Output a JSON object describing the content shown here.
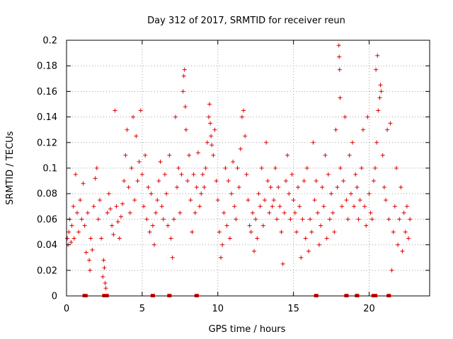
{
  "chart_data": {
    "type": "scatter",
    "title": "Day 312 of 2017, SRMTID for receiver reun",
    "xlabel": "GPS time / hours",
    "ylabel": "SRMTID / TECUs",
    "xlim": [
      0,
      24
    ],
    "ylim": [
      0,
      0.2
    ],
    "xticks": [
      0,
      5,
      10,
      15,
      20
    ],
    "xtick_labels": [
      "0",
      "5",
      "10",
      "15",
      "20"
    ],
    "yticks": [
      0,
      0.02,
      0.04,
      0.06,
      0.08,
      0.1,
      0.12,
      0.14,
      0.16,
      0.18,
      0.2
    ],
    "ytick_labels": [
      "0",
      "0.02",
      "0.04",
      "0.06",
      "0.08",
      "0.1",
      "0.12",
      "0.14",
      "0.16",
      "0.18",
      "0.2"
    ],
    "grid": true,
    "marker": "+",
    "color": "#e00000",
    "series": [
      {
        "name": "SRMTID",
        "points": [
          [
            0.05,
            0.045
          ],
          [
            0.1,
            0.04
          ],
          [
            0.15,
            0.05
          ],
          [
            0.2,
            0.06
          ],
          [
            0.3,
            0.042
          ],
          [
            0.35,
            0.055
          ],
          [
            0.45,
            0.07
          ],
          [
            0.5,
            0.045
          ],
          [
            0.6,
            0.095
          ],
          [
            0.7,
            0.065
          ],
          [
            0.8,
            0.05
          ],
          [
            0.9,
            0.075
          ],
          [
            1.0,
            0.06
          ],
          [
            1.1,
            0.088
          ],
          [
            1.2,
            0.055
          ],
          [
            1.3,
            0.034
          ],
          [
            1.4,
            0.065
          ],
          [
            1.5,
            0.028
          ],
          [
            1.55,
            0.02
          ],
          [
            1.6,
            0.045
          ],
          [
            1.7,
            0.036
          ],
          [
            1.8,
            0.07
          ],
          [
            1.9,
            0.092
          ],
          [
            2.0,
            0.1
          ],
          [
            2.1,
            0.06
          ],
          [
            2.2,
            0.075
          ],
          [
            2.3,
            0.045
          ],
          [
            2.4,
            0.015
          ],
          [
            2.45,
            0.028
          ],
          [
            2.5,
            0.022
          ],
          [
            2.55,
            0.01
          ],
          [
            2.6,
            0.006
          ],
          [
            2.7,
            0.065
          ],
          [
            2.8,
            0.08
          ],
          [
            2.9,
            0.068
          ],
          [
            3.0,
            0.055
          ],
          [
            3.1,
            0.048
          ],
          [
            3.2,
            0.145
          ],
          [
            3.3,
            0.07
          ],
          [
            3.4,
            0.058
          ],
          [
            3.5,
            0.045
          ],
          [
            3.6,
            0.062
          ],
          [
            3.7,
            0.072
          ],
          [
            3.8,
            0.09
          ],
          [
            3.9,
            0.11
          ],
          [
            4.0,
            0.13
          ],
          [
            4.1,
            0.085
          ],
          [
            4.2,
            0.065
          ],
          [
            4.3,
            0.1
          ],
          [
            4.4,
            0.14
          ],
          [
            4.5,
            0.075
          ],
          [
            4.6,
            0.125
          ],
          [
            4.7,
            0.09
          ],
          [
            4.8,
            0.105
          ],
          [
            4.9,
            0.145
          ],
          [
            5.0,
            0.095
          ],
          [
            5.1,
            0.07
          ],
          [
            5.2,
            0.11
          ],
          [
            5.3,
            0.06
          ],
          [
            5.4,
            0.085
          ],
          [
            5.5,
            0.05
          ],
          [
            5.6,
            0.08
          ],
          [
            5.7,
            0.055
          ],
          [
            5.8,
            0.04
          ],
          [
            5.9,
            0.065
          ],
          [
            6.0,
            0.075
          ],
          [
            6.1,
            0.09
          ],
          [
            6.2,
            0.105
          ],
          [
            6.3,
            0.07
          ],
          [
            6.4,
            0.06
          ],
          [
            6.5,
            0.095
          ],
          [
            6.6,
            0.08
          ],
          [
            6.7,
            0.055
          ],
          [
            6.8,
            0.11
          ],
          [
            6.9,
            0.045
          ],
          [
            7.0,
            0.03
          ],
          [
            7.1,
            0.06
          ],
          [
            7.2,
            0.14
          ],
          [
            7.3,
            0.085
          ],
          [
            7.4,
            0.1
          ],
          [
            7.5,
            0.065
          ],
          [
            7.6,
            0.095
          ],
          [
            7.7,
            0.16
          ],
          [
            7.75,
            0.172
          ],
          [
            7.8,
            0.177
          ],
          [
            7.85,
            0.148
          ],
          [
            7.9,
            0.13
          ],
          [
            8.0,
            0.09
          ],
          [
            8.1,
            0.11
          ],
          [
            8.2,
            0.075
          ],
          [
            8.3,
            0.05
          ],
          [
            8.4,
            0.095
          ],
          [
            8.5,
            0.065
          ],
          [
            8.6,
            0.085
          ],
          [
            8.7,
            0.112
          ],
          [
            8.8,
            0.07
          ],
          [
            8.9,
            0.08
          ],
          [
            9.0,
            0.095
          ],
          [
            9.1,
            0.085
          ],
          [
            9.2,
            0.1
          ],
          [
            9.3,
            0.12
          ],
          [
            9.4,
            0.14
          ],
          [
            9.45,
            0.15
          ],
          [
            9.5,
            0.135
          ],
          [
            9.55,
            0.125
          ],
          [
            9.6,
            0.118
          ],
          [
            9.7,
            0.11
          ],
          [
            9.8,
            0.13
          ],
          [
            9.9,
            0.09
          ],
          [
            10.0,
            0.075
          ],
          [
            10.1,
            0.05
          ],
          [
            10.2,
            0.03
          ],
          [
            10.3,
            0.04
          ],
          [
            10.4,
            0.065
          ],
          [
            10.5,
            0.1
          ],
          [
            10.6,
            0.055
          ],
          [
            10.7,
            0.09
          ],
          [
            10.8,
            0.045
          ],
          [
            10.9,
            0.08
          ],
          [
            11.0,
            0.105
          ],
          [
            11.1,
            0.07
          ],
          [
            11.2,
            0.06
          ],
          [
            11.3,
            0.1
          ],
          [
            11.4,
            0.085
          ],
          [
            11.5,
            0.115
          ],
          [
            11.6,
            0.14
          ],
          [
            11.7,
            0.145
          ],
          [
            11.8,
            0.125
          ],
          [
            11.9,
            0.095
          ],
          [
            12.0,
            0.075
          ],
          [
            12.1,
            0.055
          ],
          [
            12.2,
            0.05
          ],
          [
            12.3,
            0.065
          ],
          [
            12.4,
            0.035
          ],
          [
            12.5,
            0.06
          ],
          [
            12.6,
            0.045
          ],
          [
            12.7,
            0.08
          ],
          [
            12.8,
            0.07
          ],
          [
            12.9,
            0.1
          ],
          [
            13.0,
            0.055
          ],
          [
            13.1,
            0.075
          ],
          [
            13.2,
            0.12
          ],
          [
            13.3,
            0.09
          ],
          [
            13.4,
            0.065
          ],
          [
            13.5,
            0.085
          ],
          [
            13.6,
            0.07
          ],
          [
            13.7,
            0.075
          ],
          [
            13.8,
            0.1
          ],
          [
            13.9,
            0.06
          ],
          [
            14.0,
            0.085
          ],
          [
            14.1,
            0.07
          ],
          [
            14.2,
            0.05
          ],
          [
            14.3,
            0.025
          ],
          [
            14.4,
            0.065
          ],
          [
            14.5,
            0.09
          ],
          [
            14.6,
            0.11
          ],
          [
            14.7,
            0.08
          ],
          [
            14.8,
            0.06
          ],
          [
            14.9,
            0.095
          ],
          [
            15.0,
            0.075
          ],
          [
            15.1,
            0.065
          ],
          [
            15.2,
            0.05
          ],
          [
            15.3,
            0.085
          ],
          [
            15.4,
            0.07
          ],
          [
            15.5,
            0.03
          ],
          [
            15.6,
            0.06
          ],
          [
            15.7,
            0.09
          ],
          [
            15.8,
            0.045
          ],
          [
            15.9,
            0.1
          ],
          [
            16.0,
            0.035
          ],
          [
            16.1,
            0.06
          ],
          [
            16.2,
            0.05
          ],
          [
            16.3,
            0.12
          ],
          [
            16.4,
            0.075
          ],
          [
            16.5,
            0.09
          ],
          [
            16.6,
            0.065
          ],
          [
            16.7,
            0.04
          ],
          [
            16.8,
            0.055
          ],
          [
            16.9,
            0.085
          ],
          [
            17.0,
            0.07
          ],
          [
            17.1,
            0.11
          ],
          [
            17.2,
            0.045
          ],
          [
            17.3,
            0.095
          ],
          [
            17.4,
            0.06
          ],
          [
            17.5,
            0.08
          ],
          [
            17.6,
            0.065
          ],
          [
            17.7,
            0.05
          ],
          [
            17.8,
            0.13
          ],
          [
            17.9,
            0.085
          ],
          [
            18.0,
            0.196
          ],
          [
            18.02,
            0.187
          ],
          [
            18.05,
            0.177
          ],
          [
            18.08,
            0.155
          ],
          [
            18.1,
            0.1
          ],
          [
            18.2,
            0.07
          ],
          [
            18.3,
            0.09
          ],
          [
            18.4,
            0.14
          ],
          [
            18.5,
            0.075
          ],
          [
            18.6,
            0.06
          ],
          [
            18.7,
            0.11
          ],
          [
            18.8,
            0.08
          ],
          [
            18.9,
            0.12
          ],
          [
            19.0,
            0.07
          ],
          [
            19.1,
            0.095
          ],
          [
            19.2,
            0.085
          ],
          [
            19.3,
            0.06
          ],
          [
            19.4,
            0.075
          ],
          [
            19.5,
            0.1
          ],
          [
            19.6,
            0.13
          ],
          [
            19.7,
            0.07
          ],
          [
            19.8,
            0.055
          ],
          [
            19.9,
            0.14
          ],
          [
            20.0,
            0.08
          ],
          [
            20.1,
            0.065
          ],
          [
            20.2,
            0.06
          ],
          [
            20.3,
            0.09
          ],
          [
            20.4,
            0.1
          ],
          [
            20.45,
            0.177
          ],
          [
            20.5,
            0.12
          ],
          [
            20.55,
            0.188
          ],
          [
            20.6,
            0.145
          ],
          [
            20.7,
            0.155
          ],
          [
            20.75,
            0.165
          ],
          [
            20.8,
            0.16
          ],
          [
            20.9,
            0.11
          ],
          [
            21.0,
            0.085
          ],
          [
            21.1,
            0.075
          ],
          [
            21.2,
            0.13
          ],
          [
            21.3,
            0.06
          ],
          [
            21.4,
            0.135
          ],
          [
            21.5,
            0.02
          ],
          [
            21.6,
            0.05
          ],
          [
            21.7,
            0.07
          ],
          [
            21.8,
            0.1
          ],
          [
            21.9,
            0.04
          ],
          [
            22.0,
            0.06
          ],
          [
            22.1,
            0.085
          ],
          [
            22.2,
            0.035
          ],
          [
            22.3,
            0.065
          ],
          [
            22.4,
            0.05
          ],
          [
            22.5,
            0.07
          ],
          [
            22.6,
            0.045
          ],
          [
            22.7,
            0.06
          ]
        ]
      }
    ],
    "zero_points_x": [
      1.2,
      1.25,
      2.5,
      2.65,
      5.7,
      6.8,
      8.6,
      16.5,
      18.5,
      19.2,
      20.3,
      20.4,
      21.3
    ]
  }
}
